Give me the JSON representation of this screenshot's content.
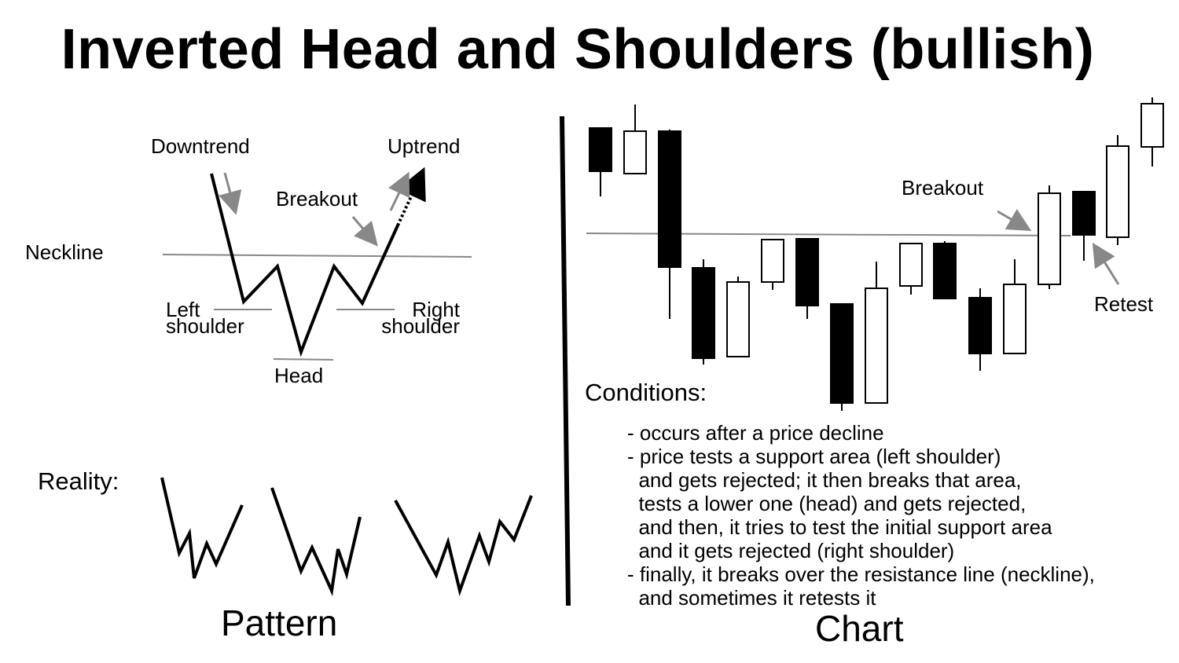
{
  "title": "Inverted Head and Shoulders (bullish)",
  "pattern": {
    "caption": "Pattern",
    "labels": {
      "downtrend": "Downtrend",
      "uptrend": "Uptrend",
      "breakout": "Breakout",
      "neckline": "Neckline",
      "left_shoulder": "Left\nshoulder",
      "right_shoulder": "Right\nshoulder",
      "head": "Head"
    },
    "reality_label": "Reality:"
  },
  "chart": {
    "caption": "Chart",
    "labels": {
      "breakout": "Breakout",
      "retest": "Retest"
    },
    "conditions_title": "Conditions:",
    "conditions": [
      "- occurs after a price decline",
      "- price tests a support area (left shoulder)",
      "  and gets rejected; it then breaks that area,",
      "  tests a lower one (head) and gets rejected,",
      "  and then, it tries to test the initial support area",
      "  and it gets rejected (right shoulder)",
      "- finally, it breaks over the resistance line (neckline),",
      "  and sometimes it retests it"
    ]
  },
  "colors": {
    "ink": "#000000",
    "guide": "#888888",
    "bull_fill": "#ffffff",
    "bear_fill": "#000000"
  }
}
